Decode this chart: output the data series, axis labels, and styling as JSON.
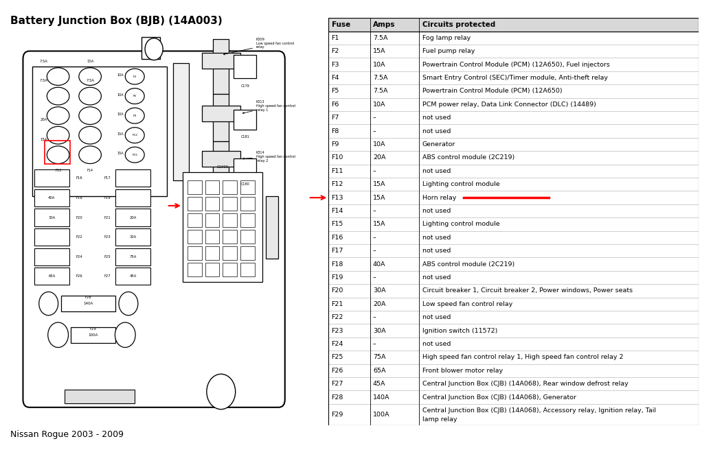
{
  "title": "Battery Junction Box (BJB) (14A003)",
  "subtitle": "Nissan Rogue 2003 - 2009",
  "background_color": "#ffffff",
  "table_header": [
    "Fuse",
    "Amps",
    "Circuits protected"
  ],
  "fuses": [
    [
      "F1",
      "7.5A",
      "Fog lamp relay"
    ],
    [
      "F2",
      "15A",
      "Fuel pump relay"
    ],
    [
      "F3",
      "10A",
      "Powertrain Control Module (PCM) (12A650), Fuel injectors"
    ],
    [
      "F4",
      "7.5A",
      "Smart Entry Control (SEC)/Timer module, Anti-theft relay"
    ],
    [
      "F5",
      "7.5A",
      "Powertrain Control Module (PCM) (12A650)"
    ],
    [
      "F6",
      "10A",
      "PCM power relay, Data Link Connector (DLC) (14489)"
    ],
    [
      "F7",
      "–",
      "not used"
    ],
    [
      "F8",
      "–",
      "not used"
    ],
    [
      "F9",
      "10A",
      "Generator"
    ],
    [
      "F10",
      "20A",
      "ABS control module (2C219)"
    ],
    [
      "F11",
      "–",
      "not used"
    ],
    [
      "F12",
      "15A",
      "Lighting control module"
    ],
    [
      "F13",
      "15A",
      "Horn relay"
    ],
    [
      "F14",
      "–",
      "not used"
    ],
    [
      "F15",
      "15A",
      "Lighting control module"
    ],
    [
      "F16",
      "–",
      "not used"
    ],
    [
      "F17",
      "–",
      "not used"
    ],
    [
      "F18",
      "40A",
      "ABS control module (2C219)"
    ],
    [
      "F19",
      "–",
      "not used"
    ],
    [
      "F20",
      "30A",
      "Circuit breaker 1, Circuit breaker 2, Power windows, Power seats"
    ],
    [
      "F21",
      "20A",
      "Low speed fan control relay"
    ],
    [
      "F22",
      "–",
      "not used"
    ],
    [
      "F23",
      "30A",
      "Ignition switch (11572)"
    ],
    [
      "F24",
      "–",
      "not used"
    ],
    [
      "F25",
      "75A",
      "High speed fan control relay 1, High speed fan control relay 2"
    ],
    [
      "F26",
      "65A",
      "Front blower motor relay"
    ],
    [
      "F27",
      "45A",
      "Central Junction Box (CJB) (14A068), Rear window defrost relay"
    ],
    [
      "F28",
      "140A",
      "Central Junction Box (CJB) (14A068), Generator"
    ],
    [
      "F29",
      "100A",
      "Central Junction Box (CJB) (14A068), Accessory relay, Ignition relay, Tail\nlamp relay"
    ]
  ],
  "highlighted_row": "F13",
  "highlight_color": "#ff0000"
}
